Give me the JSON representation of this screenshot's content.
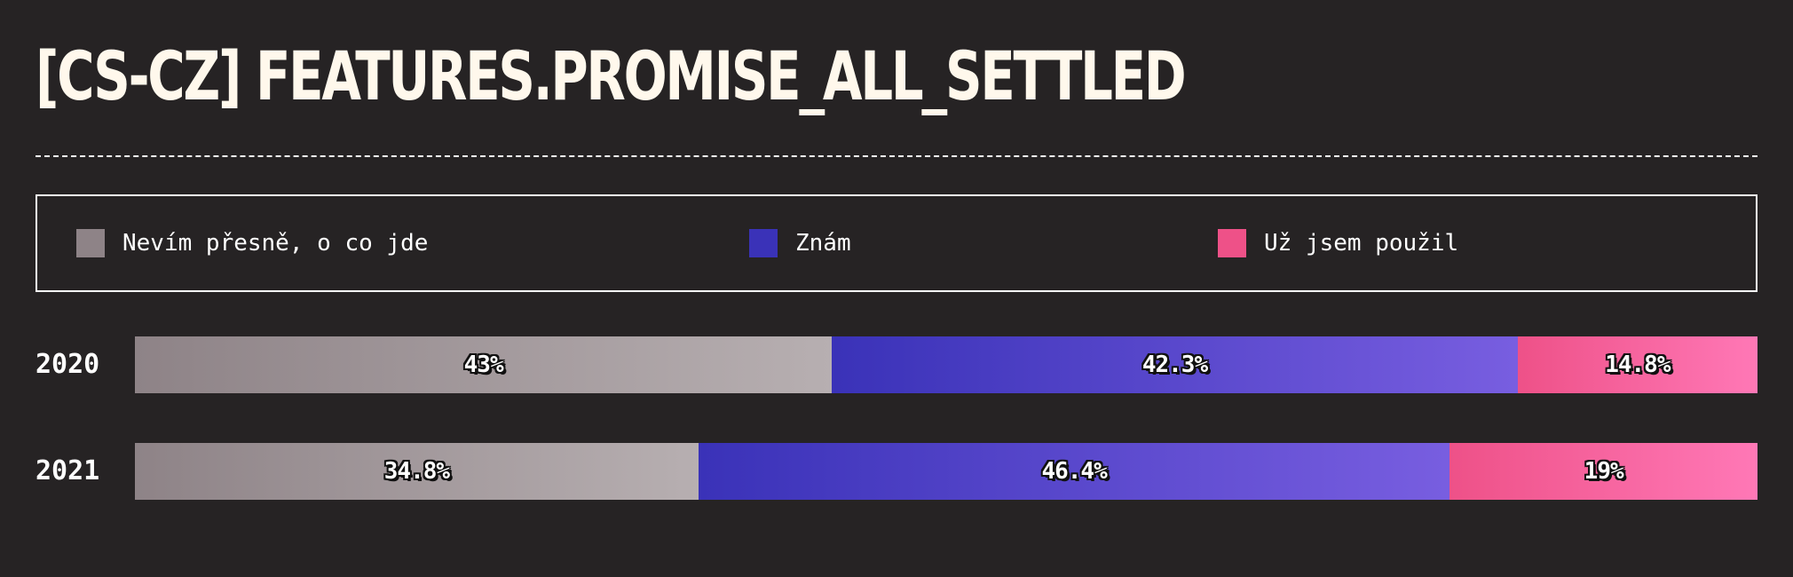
{
  "chart_data": {
    "type": "bar",
    "orientation": "horizontal",
    "stacked": true,
    "normalized_percent": true,
    "title": "[CS-CZ] FEATURES.PROMISE_ALL_SETTLED",
    "categories": [
      "2020",
      "2021"
    ],
    "series": [
      {
        "name": "Nevím přesně, o co jde",
        "values": [
          43,
          34.8
        ],
        "labels": [
          "43%",
          "34.8%"
        ],
        "color": "#8e8387",
        "color_end": "#b7afb1"
      },
      {
        "name": "Znám",
        "values": [
          42.3,
          46.4
        ],
        "labels": [
          "42.3%",
          "46.4%"
        ],
        "color": "#3a32b8",
        "color_end": "#785ee0"
      },
      {
        "name": "Už jsem použil",
        "values": [
          14.8,
          19
        ],
        "labels": [
          "14.8%",
          "19%"
        ],
        "color": "#ee5188",
        "color_end": "#ff78b6"
      }
    ],
    "xlim": [
      0,
      100
    ],
    "legend_position": "top",
    "grid": false
  },
  "colors": {
    "background": "#262324",
    "title": "#fff8ec",
    "text": "#ffffff"
  }
}
